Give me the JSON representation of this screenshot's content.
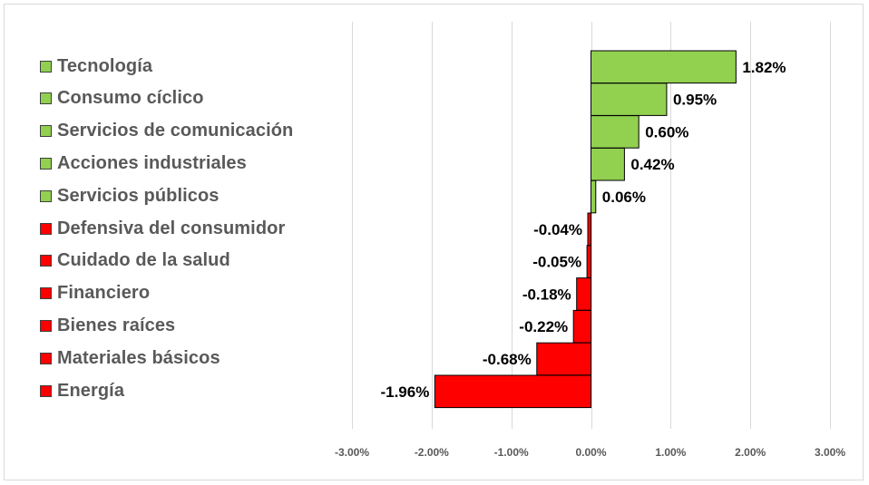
{
  "chart_data": {
    "type": "bar",
    "orientation": "horizontal",
    "categories": [
      "Tecnología",
      "Consumo cíclico",
      "Servicios de comunicación",
      "Acciones industriales",
      "Servicios públicos",
      "Defensiva del consumidor",
      "Cuidado de la salud",
      "Financiero",
      "Bienes raíces",
      "Materiales básicos",
      "Energía"
    ],
    "values": [
      1.82,
      0.95,
      0.6,
      0.42,
      0.06,
      -0.04,
      -0.05,
      -0.18,
      -0.22,
      -0.68,
      -1.96
    ],
    "data_labels": [
      "1.82%",
      "0.95%",
      "0.60%",
      "0.42%",
      "0.06%",
      "-0.04%",
      "-0.05%",
      "-0.18%",
      "-0.22%",
      "-0.68%",
      "-1.96%"
    ],
    "xlim": [
      -3,
      3
    ],
    "x_ticks": [
      -3,
      -2,
      -1,
      0,
      1,
      2,
      3
    ],
    "x_tick_labels": [
      "-3.00%",
      "-2.00%",
      "-1.00%",
      "0.00%",
      "1.00%",
      "2.00%",
      "3.00%"
    ],
    "grid": true,
    "legend_position": "left",
    "title": "",
    "xlabel": "",
    "ylabel": "",
    "colors": {
      "positive": "#92d050",
      "negative": "#ff0000",
      "bar_border": "#000000",
      "gridline": "#d9d9d9"
    }
  }
}
